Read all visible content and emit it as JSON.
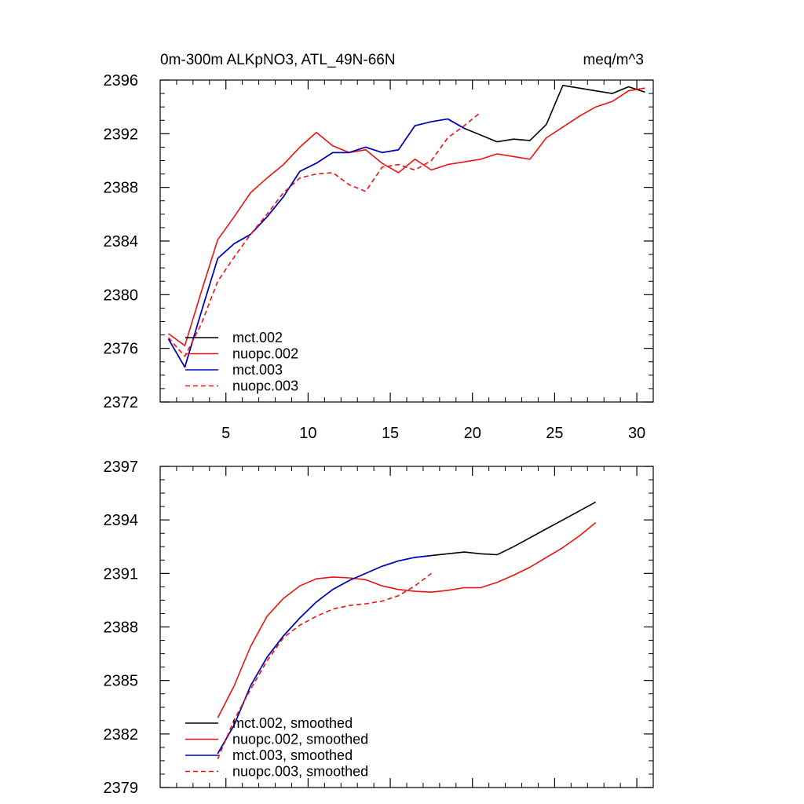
{
  "chart_data": [
    {
      "type": "line",
      "title_left": "0m-300m ALKpNO3, ATL_49N-66N",
      "title_right": "meq/m^3",
      "ylim": [
        2372,
        2396
      ],
      "xlim": [
        1,
        31
      ],
      "yticks": [
        2372,
        2376,
        2380,
        2384,
        2388,
        2392,
        2396
      ],
      "ytick_labels": [
        "2372",
        "2376",
        "2380",
        "2384",
        "2388",
        "2392",
        "2396"
      ],
      "xticks": [
        5,
        10,
        15,
        20,
        25,
        30
      ],
      "xtick_labels": [
        "5",
        "10",
        "15",
        "20",
        "25",
        "30"
      ],
      "legend_position": "bottom-left",
      "series": [
        {
          "name": "mct.002",
          "color": "#000000",
          "dash": "solid",
          "x": [
            1.5,
            2.5,
            3.5,
            4.5,
            5.5,
            6.5,
            7.5,
            8.5,
            9.5,
            10.5,
            11.5,
            12.5,
            13.5,
            14.5,
            15.5,
            16.5,
            17.5,
            18.5,
            19.5,
            20.5,
            21.5,
            22.5,
            23.5,
            24.5,
            25.5,
            26.5,
            27.5,
            28.5,
            29.5,
            30.5
          ],
          "y": [
            2376.7,
            2374.6,
            2378.7,
            2382.7,
            2383.8,
            2384.5,
            2385.8,
            2387.3,
            2389.2,
            2389.8,
            2390.6,
            2390.6,
            2391.0,
            2390.6,
            2390.8,
            2392.6,
            2392.9,
            2393.1,
            2392.4,
            2391.9,
            2391.4,
            2391.6,
            2391.5,
            2392.7,
            2395.6,
            2395.4,
            2395.2,
            2395.0,
            2395.5,
            2395.1
          ]
        },
        {
          "name": "nuopc.002",
          "color": "#ee1111",
          "dash": "solid",
          "x": [
            1.5,
            2.5,
            3.5,
            4.5,
            5.5,
            6.5,
            7.5,
            8.5,
            9.5,
            10.5,
            11.5,
            12.5,
            13.5,
            14.5,
            15.5,
            16.5,
            17.5,
            18.5,
            19.5,
            20.5,
            21.5,
            22.5,
            23.5,
            24.5,
            25.5,
            26.5,
            27.5,
            28.5,
            29.5,
            30.5
          ],
          "y": [
            2377.1,
            2376.2,
            2380.2,
            2384.1,
            2385.8,
            2387.6,
            2388.7,
            2389.7,
            2391.0,
            2392.1,
            2391.1,
            2390.6,
            2390.8,
            2389.8,
            2389.1,
            2390.1,
            2389.3,
            2389.7,
            2389.9,
            2390.1,
            2390.5,
            2390.3,
            2390.1,
            2391.7,
            2392.5,
            2393.3,
            2394.0,
            2394.4,
            2395.2,
            2395.4
          ]
        },
        {
          "name": "mct.003",
          "color": "#0000cc",
          "dash": "solid",
          "x": [
            1.5,
            2.5,
            3.5,
            4.5,
            5.5,
            6.5,
            7.5,
            8.5,
            9.5,
            10.5,
            11.5,
            12.5,
            13.5,
            14.5,
            15.5,
            16.5,
            17.5,
            18.5,
            19.5
          ],
          "y": [
            2376.7,
            2374.6,
            2378.7,
            2382.7,
            2383.8,
            2384.5,
            2385.8,
            2387.3,
            2389.2,
            2389.8,
            2390.6,
            2390.6,
            2391.0,
            2390.6,
            2390.8,
            2392.6,
            2392.9,
            2393.1,
            2392.4
          ]
        },
        {
          "name": "nuopc.003",
          "color": "#ee1111",
          "dash": "dashed",
          "x": [
            1.5,
            2.5,
            3.5,
            4.5,
            5.5,
            6.5,
            7.5,
            8.5,
            9.5,
            10.5,
            11.5,
            12.5,
            13.5,
            14.5,
            15.5,
            16.5,
            17.5,
            18.5,
            19.5,
            20.5
          ],
          "y": [
            2376.8,
            2375.4,
            2377.8,
            2381.0,
            2382.8,
            2384.5,
            2386.0,
            2387.6,
            2388.7,
            2389.0,
            2389.1,
            2388.2,
            2387.7,
            2389.5,
            2389.7,
            2389.3,
            2390.0,
            2391.7,
            2392.6,
            2393.6
          ]
        }
      ]
    },
    {
      "type": "line",
      "ylim": [
        2379,
        2397
      ],
      "xlim": [
        1,
        31
      ],
      "yticks": [
        2379,
        2382,
        2385,
        2388,
        2391,
        2394,
        2397
      ],
      "ytick_labels": [
        "2379",
        "2382",
        "2385",
        "2388",
        "2391",
        "2394",
        "2397"
      ],
      "xticks": [
        5,
        10,
        15,
        20,
        25,
        30
      ],
      "xtick_labels": [],
      "legend_position": "bottom-left",
      "series": [
        {
          "name": "mct.002, smoothed",
          "color": "#000000",
          "dash": "solid",
          "x": [
            4.5,
            5.5,
            6.5,
            7.5,
            8.5,
            9.5,
            10.5,
            11.5,
            12.5,
            13.5,
            14.5,
            15.5,
            16.5,
            17.5,
            18.5,
            19.5,
            20.5,
            21.5,
            22.5,
            23.5,
            24.5,
            25.5,
            26.5,
            27.5
          ],
          "y": [
            2380.9,
            2382.5,
            2384.7,
            2386.3,
            2387.5,
            2388.5,
            2389.4,
            2390.1,
            2390.6,
            2391.0,
            2391.4,
            2391.7,
            2391.9,
            2392.0,
            2392.1,
            2392.2,
            2392.1,
            2392.05,
            2392.5,
            2393.0,
            2393.5,
            2394.0,
            2394.5,
            2395.0
          ]
        },
        {
          "name": "nuopc.002, smoothed",
          "color": "#ee1111",
          "dash": "solid",
          "x": [
            4.5,
            5.5,
            6.5,
            7.5,
            8.5,
            9.5,
            10.5,
            11.5,
            12.5,
            13.5,
            14.5,
            15.5,
            16.5,
            17.5,
            18.5,
            19.5,
            20.5,
            21.5,
            22.5,
            23.5,
            24.5,
            25.5,
            26.5,
            27.5
          ],
          "y": [
            2382.9,
            2384.7,
            2386.9,
            2388.6,
            2389.6,
            2390.3,
            2390.7,
            2390.8,
            2390.75,
            2390.65,
            2390.3,
            2390.1,
            2390.0,
            2389.95,
            2390.05,
            2390.2,
            2390.2,
            2390.5,
            2390.9,
            2391.35,
            2391.9,
            2392.45,
            2393.1,
            2393.85
          ]
        },
        {
          "name": "mct.003, smoothed",
          "color": "#0000cc",
          "dash": "solid",
          "x": [
            4.5,
            5.5,
            6.5,
            7.5,
            8.5,
            9.5,
            10.5,
            11.5,
            12.5,
            13.5,
            14.5,
            15.5,
            16.5,
            17.5
          ],
          "y": [
            2380.9,
            2382.5,
            2384.7,
            2386.3,
            2387.5,
            2388.5,
            2389.4,
            2390.1,
            2390.6,
            2391.0,
            2391.4,
            2391.7,
            2391.9,
            2392.0
          ]
        },
        {
          "name": "nuopc.003, smoothed",
          "color": "#ee1111",
          "dash": "dashed",
          "x": [
            4.5,
            5.5,
            6.5,
            7.5,
            8.5,
            9.5,
            10.5,
            11.5,
            12.5,
            13.5,
            14.5,
            15.5,
            16.5,
            17.5
          ],
          "y": [
            2380.6,
            2382.8,
            2384.5,
            2386.1,
            2387.4,
            2388.1,
            2388.6,
            2389.0,
            2389.2,
            2389.3,
            2389.45,
            2389.75,
            2390.3,
            2391.0
          ]
        }
      ]
    }
  ]
}
